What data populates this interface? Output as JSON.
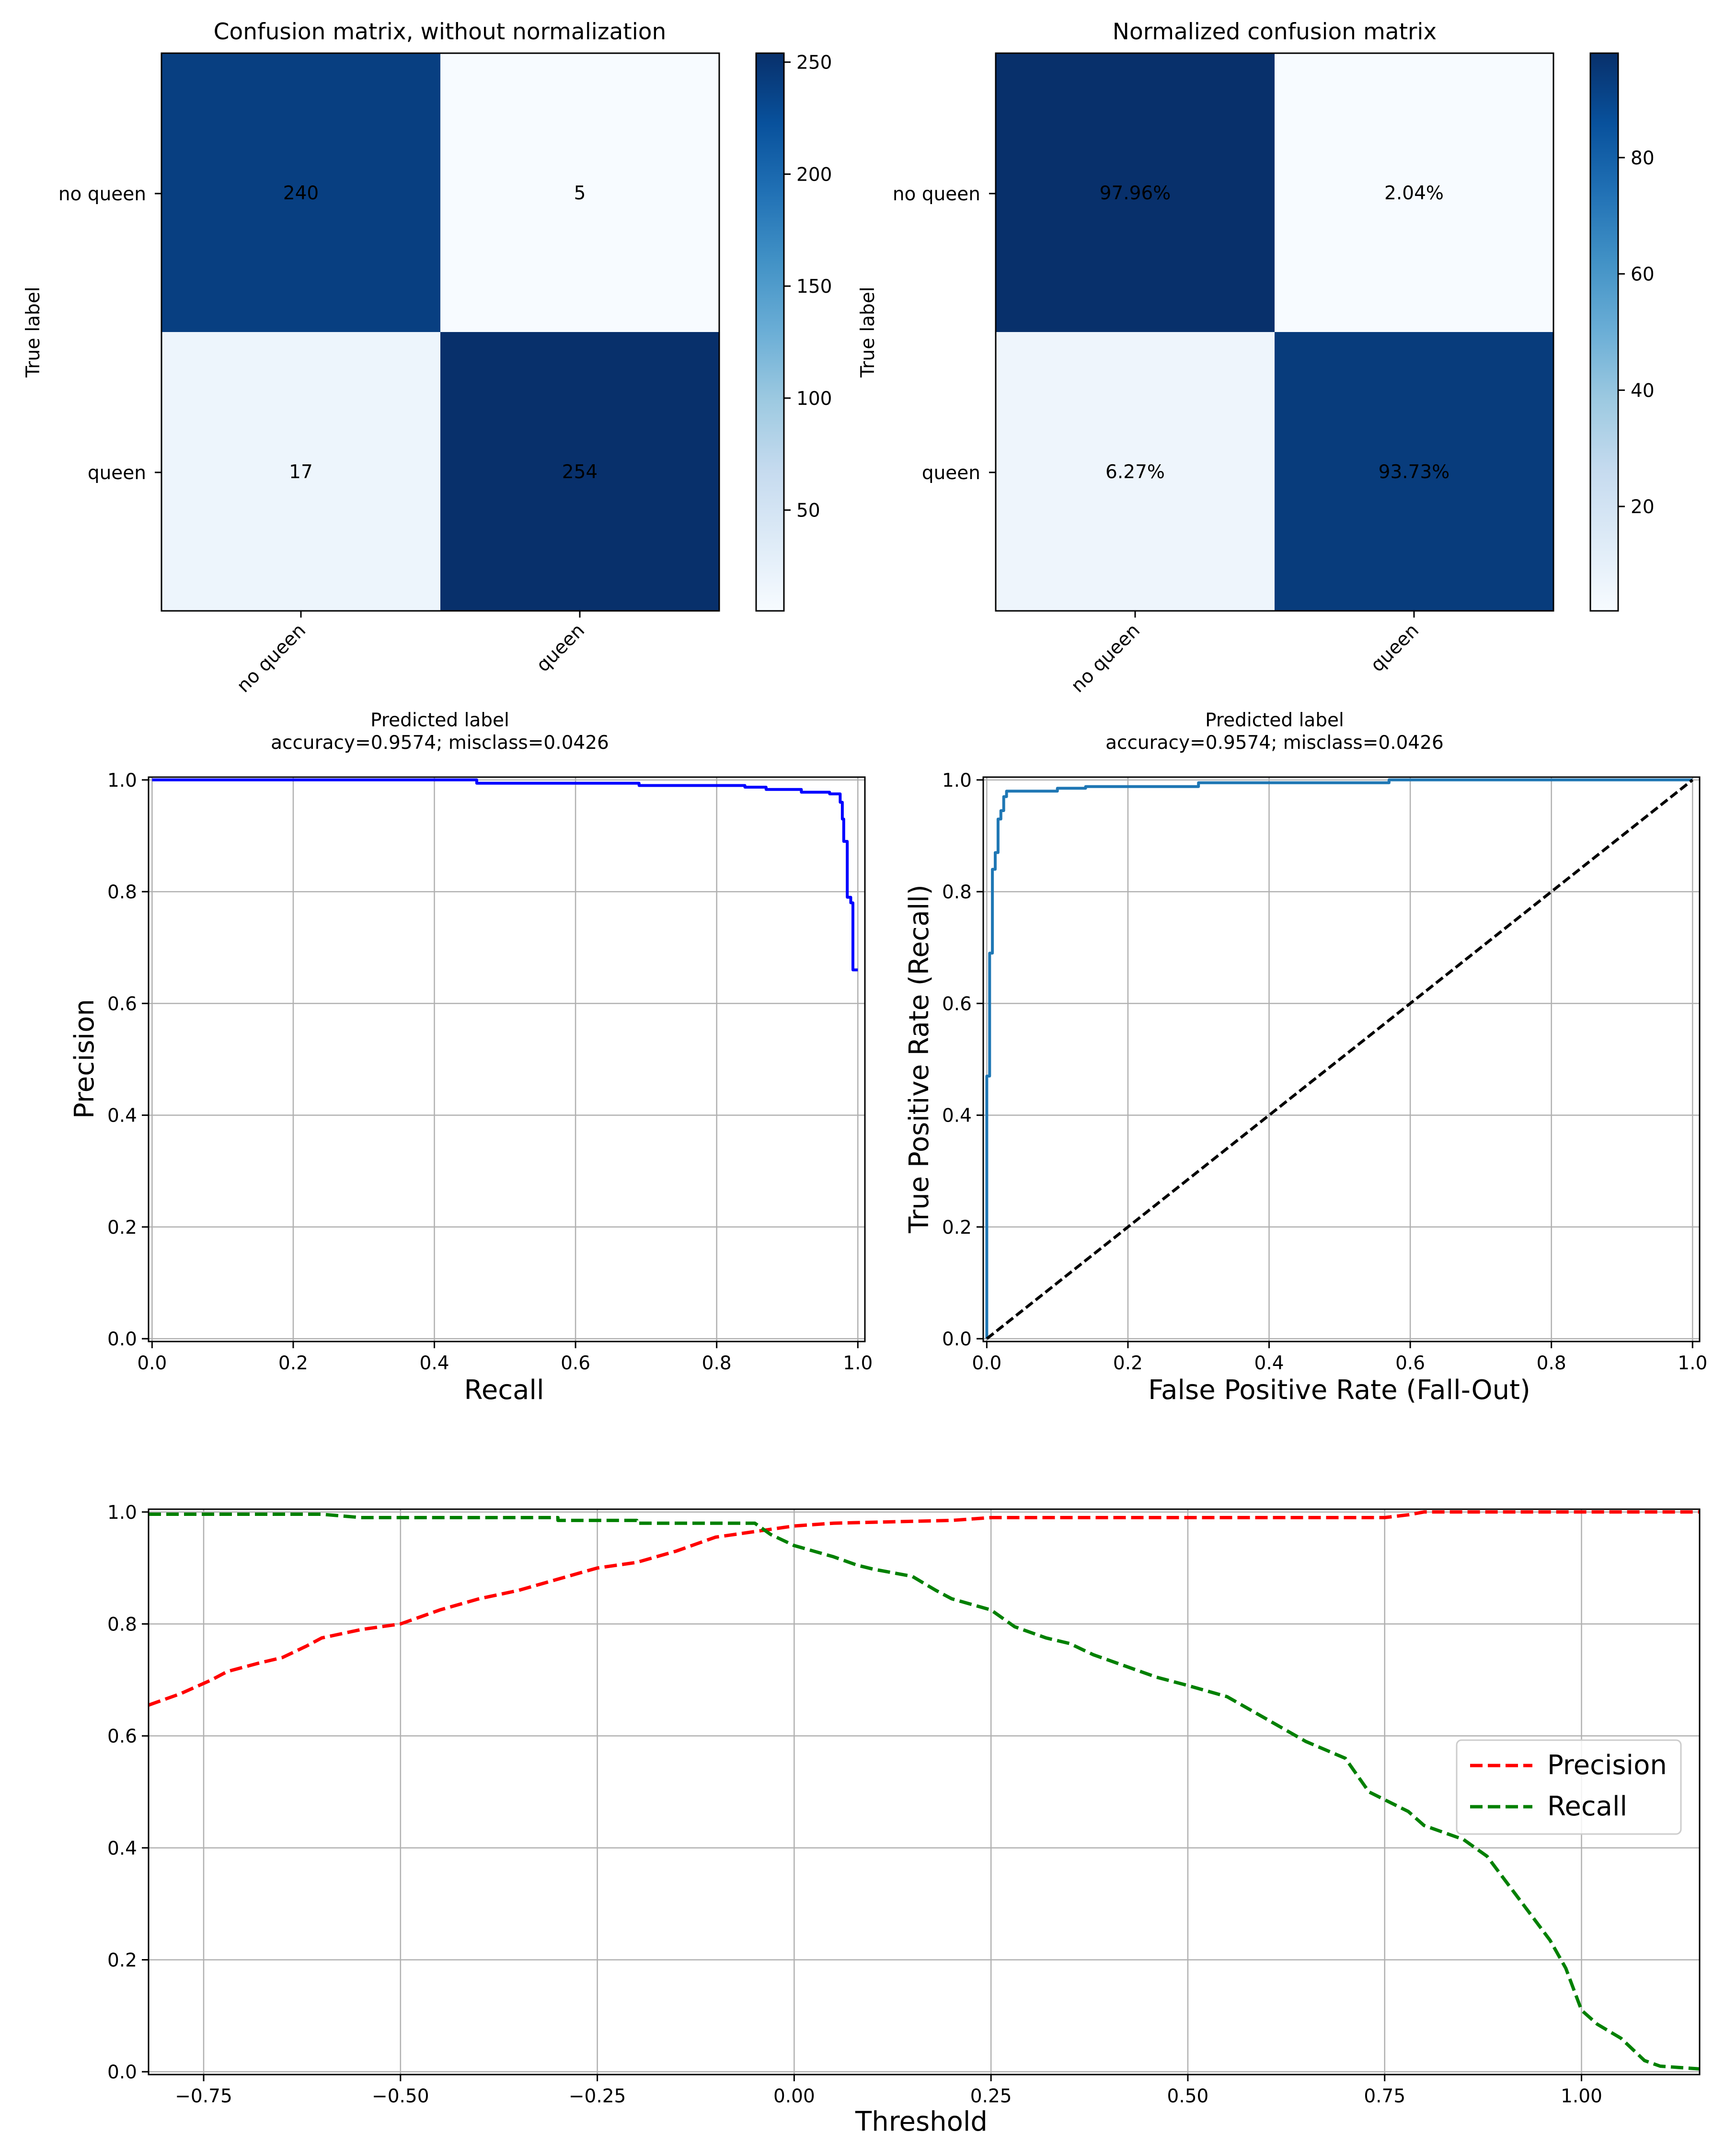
{
  "chart_data": [
    {
      "type": "heatmap",
      "title": "Confusion matrix, without normalization",
      "row_labels": [
        "no queen",
        "queen"
      ],
      "col_labels": [
        "no queen",
        "queen"
      ],
      "values": [
        [
          240,
          5
        ],
        [
          17,
          254
        ]
      ],
      "cell_text": [
        [
          "240",
          "5"
        ],
        [
          "17",
          "254"
        ]
      ],
      "ylabel": "True label",
      "xlabel": "Predicted label",
      "xlabel2": "accuracy=0.9574; misclass=0.0426",
      "colormap": "Blues",
      "colorbar": {
        "range": [
          5,
          254
        ],
        "ticks": [
          50,
          100,
          150,
          200,
          250
        ],
        "tick_labels": [
          "50",
          "100",
          "150",
          "200",
          "250"
        ]
      }
    },
    {
      "type": "heatmap",
      "title": "Normalized confusion matrix",
      "row_labels": [
        "no queen",
        "queen"
      ],
      "col_labels": [
        "no queen",
        "queen"
      ],
      "values": [
        [
          97.96,
          2.04
        ],
        [
          6.27,
          93.73
        ]
      ],
      "cell_text": [
        [
          "97.96%",
          "2.04%"
        ],
        [
          "6.27%",
          "93.73%"
        ]
      ],
      "ylabel": "True label",
      "xlabel": "Predicted label",
      "xlabel2": "accuracy=0.9574; misclass=0.0426",
      "colormap": "Blues",
      "colorbar": {
        "range": [
          2.04,
          97.96
        ],
        "ticks": [
          20,
          40,
          60,
          80
        ],
        "tick_labels": [
          "20",
          "40",
          "60",
          "80"
        ]
      }
    },
    {
      "type": "line",
      "xlabel": "Recall",
      "ylabel": "Precision",
      "xlim": [
        -0.005,
        1.01
      ],
      "ylim": [
        -0.005,
        1.005
      ],
      "xticks": [
        0.0,
        0.2,
        0.4,
        0.6,
        0.8,
        1.0
      ],
      "xtick_labels": [
        "0.0",
        "0.2",
        "0.4",
        "0.6",
        "0.8",
        "1.0"
      ],
      "yticks": [
        0.0,
        0.2,
        0.4,
        0.6,
        0.8,
        1.0
      ],
      "ytick_labels": [
        "0.0",
        "0.2",
        "0.4",
        "0.6",
        "0.8",
        "1.0"
      ],
      "grid": true,
      "series": [
        {
          "color": "#0000ff",
          "style": "solid",
          "points": [
            [
              0.0,
              1.0
            ],
            [
              0.46,
              1.0
            ],
            [
              0.46,
              0.994
            ],
            [
              0.69,
              0.994
            ],
            [
              0.69,
              0.99
            ],
            [
              0.84,
              0.99
            ],
            [
              0.84,
              0.987
            ],
            [
              0.87,
              0.987
            ],
            [
              0.87,
              0.983
            ],
            [
              0.92,
              0.983
            ],
            [
              0.92,
              0.978
            ],
            [
              0.96,
              0.978
            ],
            [
              0.96,
              0.975
            ],
            [
              0.975,
              0.975
            ],
            [
              0.975,
              0.96
            ],
            [
              0.978,
              0.96
            ],
            [
              0.978,
              0.93
            ],
            [
              0.98,
              0.93
            ],
            [
              0.98,
              0.89
            ],
            [
              0.985,
              0.89
            ],
            [
              0.985,
              0.79
            ],
            [
              0.99,
              0.79
            ],
            [
              0.99,
              0.78
            ],
            [
              0.993,
              0.78
            ],
            [
              0.993,
              0.66
            ],
            [
              1.0,
              0.66
            ]
          ]
        }
      ]
    },
    {
      "type": "line",
      "xlabel": "False Positive Rate (Fall-Out)",
      "ylabel": "True Positive Rate (Recall)",
      "xlim": [
        -0.005,
        1.01
      ],
      "ylim": [
        -0.005,
        1.005
      ],
      "xticks": [
        0.0,
        0.2,
        0.4,
        0.6,
        0.8,
        1.0
      ],
      "xtick_labels": [
        "0.0",
        "0.2",
        "0.4",
        "0.6",
        "0.8",
        "1.0"
      ],
      "yticks": [
        0.0,
        0.2,
        0.4,
        0.6,
        0.8,
        1.0
      ],
      "ytick_labels": [
        "0.0",
        "0.2",
        "0.4",
        "0.6",
        "0.8",
        "1.0"
      ],
      "grid": true,
      "series": [
        {
          "color": "#1f77b4",
          "style": "solid",
          "points": [
            [
              0.0,
              0.0
            ],
            [
              0.0,
              0.47
            ],
            [
              0.004,
              0.47
            ],
            [
              0.004,
              0.69
            ],
            [
              0.008,
              0.69
            ],
            [
              0.008,
              0.84
            ],
            [
              0.012,
              0.84
            ],
            [
              0.012,
              0.87
            ],
            [
              0.016,
              0.87
            ],
            [
              0.016,
              0.93
            ],
            [
              0.02,
              0.93
            ],
            [
              0.02,
              0.945
            ],
            [
              0.024,
              0.945
            ],
            [
              0.024,
              0.97
            ],
            [
              0.028,
              0.97
            ],
            [
              0.028,
              0.98
            ],
            [
              0.1,
              0.98
            ],
            [
              0.1,
              0.985
            ],
            [
              0.14,
              0.985
            ],
            [
              0.14,
              0.988
            ],
            [
              0.3,
              0.988
            ],
            [
              0.3,
              0.995
            ],
            [
              0.57,
              0.995
            ],
            [
              0.57,
              1.0
            ],
            [
              1.0,
              1.0
            ]
          ]
        },
        {
          "color": "#000000",
          "style": "dashed",
          "points": [
            [
              0.0,
              0.0
            ],
            [
              1.0,
              1.0
            ]
          ]
        }
      ]
    },
    {
      "type": "line",
      "xlabel": "Threshold",
      "ylabel": "",
      "xlim": [
        -0.82,
        1.15
      ],
      "ylim": [
        -0.005,
        1.005
      ],
      "xticks": [
        -0.75,
        -0.5,
        -0.25,
        0.0,
        0.25,
        0.5,
        0.75,
        1.0
      ],
      "xtick_labels": [
        "−0.75",
        "−0.50",
        "−0.25",
        "0.00",
        "0.25",
        "0.50",
        "0.75",
        "1.00"
      ],
      "yticks": [
        0.0,
        0.2,
        0.4,
        0.6,
        0.8,
        1.0
      ],
      "ytick_labels": [
        "0.0",
        "0.2",
        "0.4",
        "0.6",
        "0.8",
        "1.0"
      ],
      "grid": true,
      "legend": "center-right",
      "series": [
        {
          "name": "Precision",
          "color": "#ff0000",
          "style": "dashed",
          "points": [
            [
              -0.82,
              0.655
            ],
            [
              -0.78,
              0.675
            ],
            [
              -0.74,
              0.7
            ],
            [
              -0.72,
              0.715
            ],
            [
              -0.68,
              0.73
            ],
            [
              -0.65,
              0.74
            ],
            [
              -0.62,
              0.76
            ],
            [
              -0.6,
              0.775
            ],
            [
              -0.55,
              0.79
            ],
            [
              -0.5,
              0.8
            ],
            [
              -0.45,
              0.825
            ],
            [
              -0.4,
              0.845
            ],
            [
              -0.35,
              0.86
            ],
            [
              -0.3,
              0.88
            ],
            [
              -0.25,
              0.9
            ],
            [
              -0.2,
              0.91
            ],
            [
              -0.15,
              0.93
            ],
            [
              -0.1,
              0.955
            ],
            [
              -0.05,
              0.965
            ],
            [
              0.0,
              0.975
            ],
            [
              0.05,
              0.98
            ],
            [
              0.2,
              0.985
            ],
            [
              0.25,
              0.99
            ],
            [
              0.75,
              0.99
            ],
            [
              0.78,
              0.995
            ],
            [
              0.8,
              1.0
            ],
            [
              1.15,
              1.0
            ]
          ]
        },
        {
          "name": "Recall",
          "color": "#008000",
          "style": "dashed",
          "points": [
            [
              -0.82,
              0.996
            ],
            [
              -0.6,
              0.996
            ],
            [
              -0.55,
              0.99
            ],
            [
              -0.3,
              0.99
            ],
            [
              -0.3,
              0.985
            ],
            [
              -0.2,
              0.985
            ],
            [
              -0.2,
              0.98
            ],
            [
              -0.05,
              0.98
            ],
            [
              -0.03,
              0.96
            ],
            [
              0.0,
              0.94
            ],
            [
              0.05,
              0.92
            ],
            [
              0.08,
              0.905
            ],
            [
              0.1,
              0.898
            ],
            [
              0.15,
              0.885
            ],
            [
              0.18,
              0.86
            ],
            [
              0.2,
              0.845
            ],
            [
              0.25,
              0.825
            ],
            [
              0.28,
              0.795
            ],
            [
              0.32,
              0.775
            ],
            [
              0.35,
              0.765
            ],
            [
              0.38,
              0.745
            ],
            [
              0.42,
              0.725
            ],
            [
              0.46,
              0.705
            ],
            [
              0.5,
              0.69
            ],
            [
              0.55,
              0.67
            ],
            [
              0.6,
              0.63
            ],
            [
              0.65,
              0.59
            ],
            [
              0.7,
              0.56
            ],
            [
              0.73,
              0.5
            ],
            [
              0.78,
              0.465
            ],
            [
              0.8,
              0.44
            ],
            [
              0.85,
              0.415
            ],
            [
              0.88,
              0.385
            ],
            [
              0.92,
              0.31
            ],
            [
              0.96,
              0.235
            ],
            [
              0.98,
              0.185
            ],
            [
              1.0,
              0.11
            ],
            [
              1.02,
              0.085
            ],
            [
              1.05,
              0.06
            ],
            [
              1.08,
              0.02
            ],
            [
              1.1,
              0.01
            ],
            [
              1.15,
              0.005
            ]
          ]
        }
      ]
    }
  ]
}
